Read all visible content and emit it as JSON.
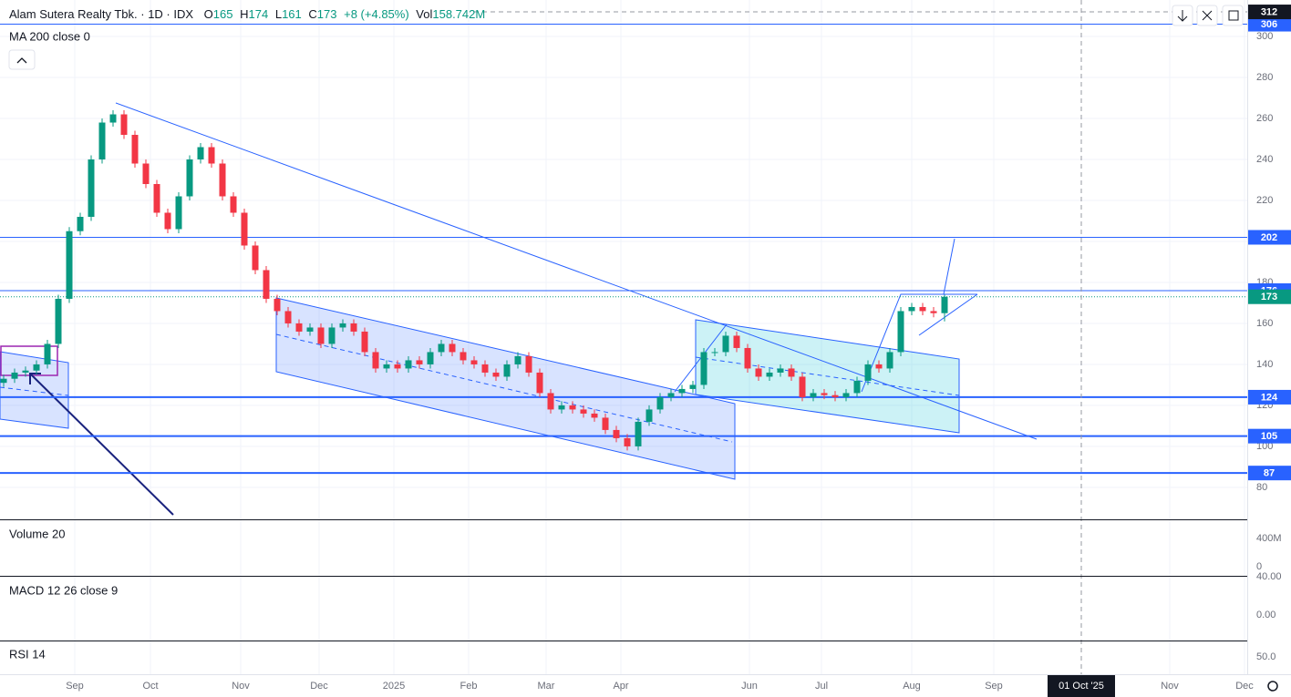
{
  "chart_data": {
    "type": "candlestick",
    "title": "Alam Sutera Realty Tbk. · 1D · IDX",
    "header": {
      "o_label": "O",
      "o": 165,
      "h_label": "H",
      "h": 174,
      "l_label": "L",
      "l": 161,
      "c_label": "C",
      "c": 173,
      "change": "+8 (+4.85%)",
      "vol_label": "Vol",
      "vol": "158.742M"
    },
    "indicator": "MA 200 close 0",
    "open": [
      131,
      133,
      136,
      137,
      140,
      150,
      172,
      205,
      212,
      240,
      258,
      262,
      252,
      238,
      228,
      214,
      206,
      222,
      240,
      246,
      238,
      222,
      214,
      198,
      186,
      172,
      166,
      160,
      156,
      158,
      150,
      158,
      160,
      156,
      146,
      138,
      140,
      138,
      142,
      140,
      146,
      150,
      146,
      142,
      140,
      136,
      134,
      140,
      144,
      136,
      126,
      118,
      120,
      118,
      116,
      114,
      108,
      104,
      100,
      112,
      118,
      124,
      126,
      128,
      130,
      146,
      146,
      154,
      148,
      138,
      134,
      136,
      138,
      134,
      124,
      126,
      125,
      124,
      126,
      132,
      140,
      138,
      146,
      166,
      168,
      166,
      165
    ],
    "high": [
      135,
      138,
      139,
      142,
      152,
      174,
      207,
      214,
      242,
      260,
      264,
      264,
      254,
      240,
      230,
      216,
      224,
      242,
      248,
      248,
      240,
      224,
      216,
      200,
      188,
      174,
      168,
      162,
      160,
      160,
      160,
      162,
      162,
      158,
      148,
      142,
      142,
      144,
      144,
      148,
      152,
      152,
      148,
      144,
      142,
      138,
      142,
      146,
      146,
      138,
      128,
      122,
      122,
      120,
      118,
      116,
      110,
      106,
      114,
      120,
      126,
      128,
      130,
      132,
      148,
      148,
      156,
      156,
      150,
      140,
      138,
      140,
      140,
      136,
      128,
      128,
      127,
      128,
      134,
      142,
      142,
      148,
      168,
      170,
      170,
      168,
      174
    ],
    "low": [
      129,
      131,
      134,
      135,
      138,
      148,
      170,
      203,
      210,
      238,
      256,
      250,
      236,
      226,
      212,
      204,
      204,
      220,
      238,
      236,
      220,
      212,
      196,
      184,
      170,
      164,
      158,
      154,
      154,
      148,
      148,
      156,
      154,
      144,
      136,
      136,
      136,
      136,
      138,
      138,
      144,
      144,
      140,
      138,
      134,
      132,
      132,
      138,
      134,
      124,
      116,
      116,
      116,
      114,
      112,
      106,
      102,
      98,
      98,
      110,
      116,
      122,
      124,
      126,
      128,
      144,
      144,
      146,
      136,
      132,
      132,
      134,
      132,
      122,
      122,
      123,
      122,
      122,
      124,
      130,
      136,
      136,
      144,
      164,
      164,
      163,
      161
    ],
    "close": [
      133,
      136,
      137,
      140,
      150,
      172,
      205,
      212,
      240,
      258,
      262,
      252,
      238,
      228,
      214,
      206,
      222,
      240,
      246,
      238,
      222,
      214,
      198,
      186,
      172,
      166,
      160,
      156,
      158,
      150,
      158,
      160,
      156,
      146,
      138,
      140,
      138,
      142,
      140,
      146,
      150,
      146,
      142,
      140,
      136,
      134,
      140,
      144,
      136,
      126,
      118,
      120,
      118,
      116,
      114,
      108,
      104,
      100,
      112,
      118,
      124,
      126,
      128,
      130,
      146,
      146,
      154,
      148,
      138,
      134,
      136,
      138,
      134,
      124,
      126,
      125,
      124,
      126,
      132,
      140,
      138,
      146,
      166,
      168,
      166,
      165,
      173
    ],
    "up_color": "#089981",
    "down_color": "#f23645",
    "ylim": [
      64.4,
      317.8
    ],
    "yticks": [
      80,
      100,
      120,
      140,
      160,
      180,
      200,
      220,
      240,
      260,
      280,
      300
    ],
    "price_lines": [
      306,
      202,
      176,
      124,
      105,
      87
    ],
    "price_line_color": "#2962ff",
    "last_price": 173,
    "crosshair_price": 312,
    "crosshair_date": "01 Oct '25",
    "x_labels": [
      "Sep",
      "Oct",
      "Nov",
      "Dec",
      "2025",
      "Feb",
      "Mar",
      "Apr",
      "Jun",
      "Jul",
      "Aug",
      "Sep",
      "Nov",
      "Dec"
    ],
    "panes": [
      {
        "title": "Volume 20",
        "ticks": [
          "400M",
          0
        ]
      },
      {
        "title": "MACD 12 26 close 9",
        "ticks": [
          "40.00",
          "0.00"
        ]
      },
      {
        "title": "RSI 14",
        "ticks": [
          "50.0"
        ]
      }
    ],
    "grid": true
  }
}
